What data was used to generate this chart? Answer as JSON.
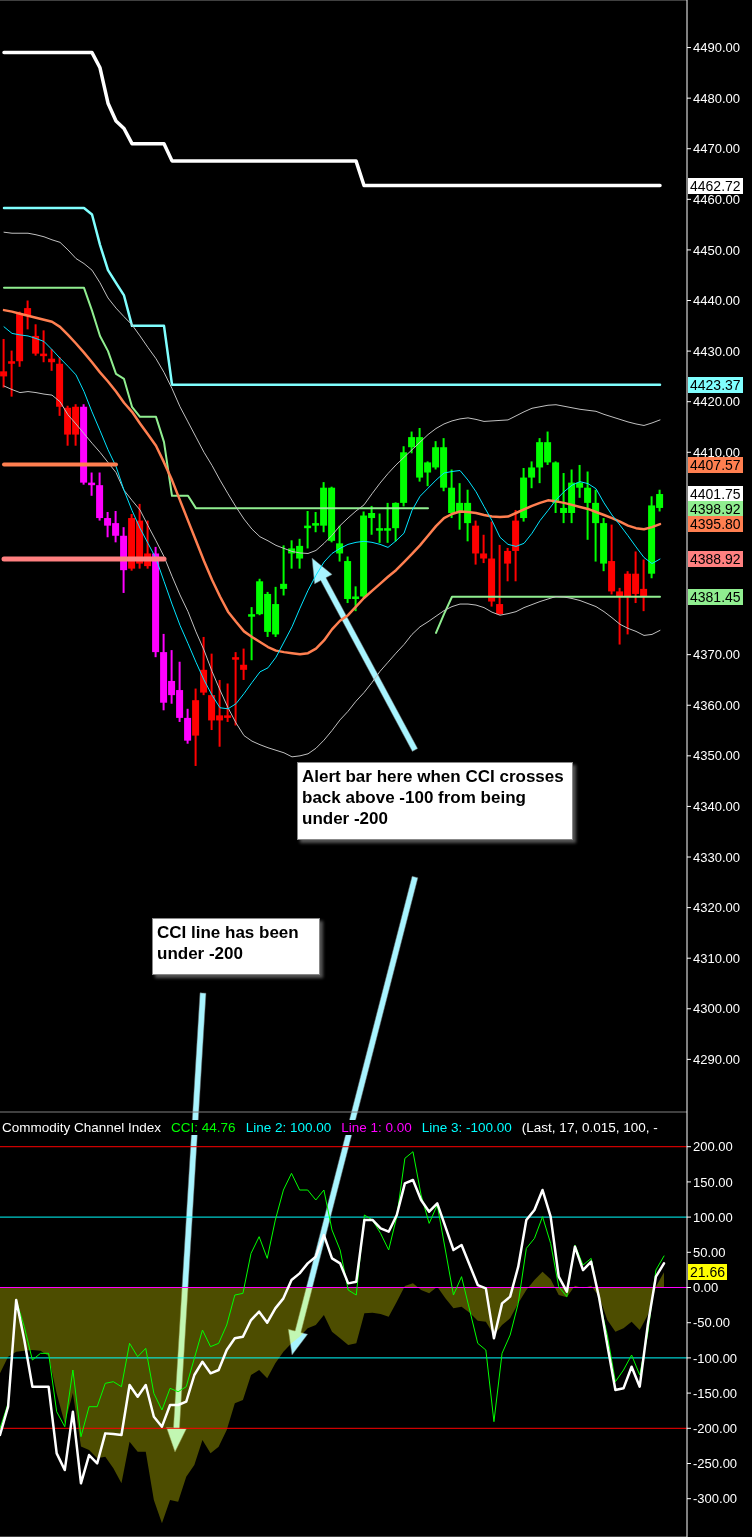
{
  "chart_data": [
    {
      "type": "candlestick",
      "tick_labels": "y",
      "categories": [
        null,
        null,
        null,
        null,
        null,
        null,
        null,
        null,
        null,
        null,
        null,
        null,
        null,
        null,
        null,
        null,
        null,
        null,
        null,
        null,
        null,
        null,
        null,
        null,
        null,
        null,
        null,
        null,
        null,
        null,
        null,
        null,
        null,
        null,
        null,
        null,
        null,
        null,
        null,
        null,
        null,
        null,
        null,
        null,
        null,
        null,
        null,
        null,
        null,
        null,
        null,
        null,
        null,
        null,
        null,
        null,
        null,
        null,
        null,
        null,
        null,
        null,
        null,
        null,
        null,
        null,
        null,
        null,
        null,
        null,
        null,
        null,
        null,
        null,
        null,
        null,
        null,
        null,
        null,
        null,
        null,
        null,
        null
      ],
      "ohlc": [
        [
          4426,
          4432.4,
          4422.8,
          4425
        ],
        [
          4428,
          4430.1,
          4421,
          4427.5
        ],
        [
          4437.5,
          4437.8,
          4426.9,
          4428
        ],
        [
          4438.5,
          4440,
          4434.3,
          4437
        ],
        [
          4433,
          4435.3,
          4429.1,
          4429.5
        ],
        [
          4429.5,
          4434.1,
          4427.8,
          4429
        ],
        [
          4428.5,
          4430.4,
          4426.1,
          4427.8
        ],
        [
          4427.5,
          4428.8,
          4417.2,
          4419
        ],
        [
          4418.8,
          4419.2,
          4411.3,
          4413.5
        ],
        [
          4419,
          4419.5,
          4411.3,
          4413.5
        ],
        [
          4419,
          4419.5,
          4403.6,
          4404
        ],
        [
          4404,
          4406,
          4401.4,
          4403.5
        ],
        [
          4403.5,
          4406,
          4396.5,
          4397
        ],
        [
          4397,
          4398.2,
          4393.2,
          4395.5
        ],
        [
          4396,
          4398.4,
          4392.2,
          4393.5
        ],
        [
          4393.5,
          4395.2,
          4382.2,
          4386.7
        ],
        [
          4397,
          4397.8,
          4386.6,
          4387
        ],
        [
          4396.5,
          4399.8,
          4387,
          4388
        ],
        [
          4390,
          4396.5,
          4387,
          4387.5
        ],
        [
          4390,
          4391.3,
          4369.5,
          4370.5
        ],
        [
          4370.5,
          4374.1,
          4359,
          4360.5
        ],
        [
          4364.8,
          4370.9,
          4360.3,
          4362
        ],
        [
          4363,
          4368.6,
          4356.7,
          4357.5
        ],
        [
          4357.5,
          4359.3,
          4352.4,
          4353
        ],
        [
          4361,
          4363.3,
          4348,
          4354
        ],
        [
          4367,
          4373.5,
          4362,
          4362.5
        ],
        [
          4362,
          4370.2,
          4355.1,
          4357
        ],
        [
          4358,
          4365,
          4351.8,
          4357
        ],
        [
          4358,
          4364.3,
          4356.7,
          4357.5
        ],
        [
          4369.5,
          4370.5,
          4356,
          4369
        ],
        [
          4368,
          4371.2,
          4365,
          4367
        ],
        [
          4377.5,
          4379.4,
          4368.9,
          4378
        ],
        [
          4378,
          4385,
          4377.8,
          4384.5
        ],
        [
          4374.5,
          4382.4,
          4373.5,
          4382
        ],
        [
          4374,
          4383.4,
          4373.5,
          4380
        ],
        [
          4383,
          4391.6,
          4381.7,
          4384
        ],
        [
          4390,
          4392.6,
          4387,
          4391
        ],
        [
          4389,
          4392.9,
          4387,
          4391.5
        ],
        [
          4395,
          4398.4,
          4391,
          4395.5
        ],
        [
          4395.5,
          4398.2,
          4394.2,
          4396
        ],
        [
          4395.5,
          4404.1,
          4394.2,
          4403
        ],
        [
          4392.5,
          4403.2,
          4392.2,
          4403
        ],
        [
          4390,
          4395.5,
          4388.4,
          4392
        ],
        [
          4381,
          4389.4,
          4380.2,
          4388.5
        ],
        [
          4381,
          4383.5,
          4378.6,
          4381.5
        ],
        [
          4381.5,
          4398.3,
          4381.2,
          4397.5
        ],
        [
          4397,
          4399.4,
          4393.7,
          4398
        ],
        [
          4394.5,
          4397.9,
          4392.1,
          4395
        ],
        [
          4394.5,
          4400,
          4392.1,
          4395
        ],
        [
          4395,
          4400.1,
          4392.4,
          4400
        ],
        [
          4400,
          4411.2,
          4399.3,
          4410
        ],
        [
          4411,
          4414.1,
          4409.8,
          4413
        ],
        [
          4405,
          4414.8,
          4404.2,
          4413
        ],
        [
          4406,
          4408.2,
          4403.3,
          4408
        ],
        [
          4407,
          4412.2,
          4406.6,
          4411
        ],
        [
          4403,
          4412.8,
          4402.3,
          4411
        ],
        [
          4398,
          4406.6,
          4397,
          4403
        ],
        [
          4398,
          4403.9,
          4394.7,
          4400
        ],
        [
          4396,
          4402.6,
          4392.4,
          4400
        ],
        [
          4395.5,
          4396.5,
          4387.8,
          4390
        ],
        [
          4390,
          4393.7,
          4388.1,
          4389
        ],
        [
          4389,
          4396.3,
          4379.5,
          4380.5
        ],
        [
          4380,
          4391.7,
          4377.9,
          4378
        ],
        [
          4390.5,
          4391.1,
          4384.5,
          4388
        ],
        [
          4396.5,
          4398.6,
          4384.5,
          4390.5
        ],
        [
          4397,
          4406.9,
          4396.3,
          4405
        ],
        [
          4405,
          4408.2,
          4402.9,
          4407
        ],
        [
          4407,
          4412.8,
          4403.9,
          4412
        ],
        [
          4408,
          4414.1,
          4407.5,
          4412
        ],
        [
          4400,
          4408.2,
          4398,
          4408
        ],
        [
          4398,
          4405.9,
          4396,
          4399
        ],
        [
          4398,
          4406.6,
          4396,
          4404
        ],
        [
          4403,
          4407.5,
          4401,
          4404
        ],
        [
          4400,
          4406.2,
          4392.7,
          4403
        ],
        [
          4396,
          4402.6,
          4388.4,
          4400
        ],
        [
          4388,
          4397,
          4386.5,
          4396
        ],
        [
          4388.5,
          4395.7,
          4381.9,
          4382.5
        ],
        [
          4382.5,
          4383.2,
          4372,
          4381.5
        ],
        [
          4386,
          4386.5,
          4374,
          4381.5
        ],
        [
          4386,
          4390.4,
          4380.2,
          4382
        ],
        [
          4383,
          4388.8,
          4378.6,
          4381.5
        ],
        [
          4386,
          4401.3,
          4385.1,
          4399.5
        ],
        [
          4399,
          4402.6,
          4398.3,
          4401.75
        ]
      ],
      "colors": [
        "#ff0000",
        "#ff0000",
        "#ff0000",
        "#ff0000",
        "#ff0000",
        "#ff0000",
        "#ff0000",
        "#ff0000",
        "#ff0000",
        "#ff0000",
        "#ff00ff",
        "#ff00ff",
        "#ff00ff",
        "#ff00ff",
        "#ff00ff",
        "#ff00ff",
        "#ff0000",
        "#ff0000",
        "#ff0000",
        "#ff00ff",
        "#ff00ff",
        "#ff00ff",
        "#ff00ff",
        "#ff00ff",
        "#ff0000",
        "#ff0000",
        "#ff0000",
        "#ff0000",
        "#ff0000",
        "#ff0000",
        "#ff0000",
        "#00ff00",
        "#00ff00",
        "#00ff00",
        "#00ff00",
        "#00ff00",
        "#00ff00",
        "#00ff00",
        "#00ff00",
        "#00ff00",
        "#00ff00",
        "#00ff00",
        "#00ff00",
        "#00ff00",
        "#00ff00",
        "#00ff00",
        "#00ff00",
        "#00ff00",
        "#00ff00",
        "#00ff00",
        "#00ff00",
        "#00ff00",
        "#00ff00",
        "#00ff00",
        "#00ff00",
        "#00ff00",
        "#00ff00",
        "#00ff00",
        "#00ff00",
        "#ff0000",
        "#ff0000",
        "#ff0000",
        "#ff0000",
        "#ff0000",
        "#ff0000",
        "#00ff00",
        "#00ff00",
        "#00ff00",
        "#00ff00",
        "#00ff00",
        "#00ff00",
        "#00ff00",
        "#00ff00",
        "#00ff00",
        "#00ff00",
        "#00ff00",
        "#ff0000",
        "#ff0000",
        "#ff0000",
        "#ff0000",
        "#ff0000",
        "#00ff00",
        "#00ff00"
      ],
      "series": [
        {
          "type": "line",
          "color": "#ffffff",
          "values": [
            4489,
            4489,
            4489,
            4489,
            4489,
            4489,
            4489,
            4489,
            4489,
            4489,
            4489,
            4489,
            4486,
            4479,
            4475.5,
            4474,
            4471,
            4471,
            4471,
            4471,
            4471,
            4467.6,
            4467.6,
            4467.6,
            4467.6,
            4467.6,
            4467.6,
            4467.6,
            4467.6,
            4467.6,
            4467.6,
            4467.6,
            4467.6,
            4467.6,
            4467.6,
            4467.6,
            4467.6,
            4467.6,
            4467.6,
            4467.6,
            4467.6,
            4467.6,
            4467.6,
            4467.6,
            4467.6,
            4462.72,
            4462.72,
            4462.72,
            4462.72,
            4462.72,
            4462.72,
            4462.72,
            4462.72,
            4462.72,
            4462.72,
            4462.72,
            4462.72,
            4462.72,
            4462.72,
            4462.72,
            4462.72,
            4462.72,
            4462.72,
            4462.72,
            4462.72,
            4462.72,
            4462.72,
            4462.72,
            4462.72,
            4462.72,
            4462.72,
            4462.72,
            4462.72,
            4462.72,
            4462.72,
            4462.72,
            4462.72,
            4462.72,
            4462.72,
            4462.72,
            4462.72,
            4462.72,
            4462.72
          ]
        },
        {
          "type": "line",
          "color": "#80ffff",
          "values": [
            4458.3,
            4458.3,
            4458.3,
            4458.3,
            4458.3,
            4458.3,
            4458.3,
            4458.3,
            4458.3,
            4458.3,
            4458.3,
            4457,
            4451,
            4446,
            4443.5,
            4441,
            4435,
            4435,
            4435,
            4435,
            4435,
            4423.37,
            4423.37,
            4423.37,
            4423.37,
            4423.37,
            4423.37,
            4423.37,
            4423.37,
            4423.37,
            4423.37,
            4423.37,
            4423.37,
            4423.37,
            4423.37,
            4423.37,
            4423.37,
            4423.37,
            4423.37,
            4423.37,
            4423.37,
            4423.37,
            4423.37,
            4423.37,
            4423.37,
            4423.37,
            4423.37,
            4423.37,
            4423.37,
            4423.37,
            4423.37,
            4423.37,
            4423.37,
            4423.37,
            4423.37,
            4423.37,
            4423.37,
            4423.37,
            4423.37,
            4423.37,
            4423.37,
            4423.37,
            4423.37,
            4423.37,
            4423.37,
            4423.37,
            4423.37,
            4423.37,
            4423.37,
            4423.37,
            4423.37,
            4423.37,
            4423.37,
            4423.37,
            4423.37,
            4423.37,
            4423.37,
            4423.37,
            4423.37,
            4423.37,
            4423.37,
            4423.37,
            4423.37
          ]
        },
        {
          "type": "line",
          "color": "#90ee90",
          "values": [
            4442.5,
            4442.5,
            4442.5,
            4442.5,
            4442.5,
            4442.5,
            4442.5,
            4442.5,
            4442.5,
            4442.5,
            4442.5,
            4438,
            4433,
            4430,
            4425.5,
            4424.5,
            4419,
            4417,
            4417,
            4417,
            4412,
            4401.4,
            4401.4,
            4401.4,
            4398.92,
            4398.92,
            4398.92,
            4398.92,
            4398.92,
            4398.92,
            4398.92,
            4398.92,
            4398.92,
            4398.92,
            4398.92,
            4398.92,
            4398.92,
            4398.92,
            4398.92,
            4398.92,
            4398.92,
            4398.92,
            4398.92,
            4398.92,
            4398.92,
            4398.92,
            4398.92,
            4398.92,
            4398.92,
            4398.92,
            4398.92,
            4398.92,
            4398.92,
            4398.92,
            null,
            null,
            null,
            null,
            null,
            null,
            null,
            null,
            null,
            null,
            null,
            null,
            null,
            null,
            null,
            null,
            null,
            null,
            null,
            null,
            null,
            null,
            null,
            null,
            null,
            null,
            null,
            null,
            null
          ]
        },
        {
          "type": "line",
          "color": "#90ee90",
          "values": [
            null,
            null,
            null,
            null,
            null,
            null,
            null,
            null,
            null,
            null,
            null,
            null,
            null,
            null,
            null,
            null,
            null,
            null,
            null,
            null,
            null,
            null,
            null,
            null,
            null,
            null,
            null,
            null,
            null,
            null,
            null,
            null,
            null,
            null,
            null,
            null,
            null,
            null,
            null,
            null,
            null,
            null,
            null,
            null,
            null,
            null,
            null,
            null,
            null,
            null,
            null,
            null,
            null,
            null,
            4374.3,
            4378,
            4381.45,
            4381.45,
            4381.45,
            4381.45,
            4381.45,
            4381.45,
            4381.45,
            4381.45,
            4381.45,
            4381.45,
            4381.45,
            4381.45,
            4381.45,
            4381.45,
            4381.45,
            4381.45,
            4381.45,
            4381.45,
            4381.45,
            4381.45,
            4381.45,
            4381.45,
            4381.45,
            4381.45,
            4381.45,
            4381.45,
            4381.45
          ]
        },
        {
          "type": "line",
          "color": "#c0c0c0",
          "values": [
            4453.5,
            4453.3,
            4453.3,
            4453.3,
            4453,
            4452.6,
            4452,
            4451.5,
            4450,
            4448.3,
            4447.3,
            4446,
            4443.5,
            4440.5,
            4438.5,
            4436.8,
            4435.2,
            4433,
            4430.7,
            4428.5,
            4425.8,
            4422.6,
            4419,
            4416,
            4413,
            4410,
            4407.4,
            4404.5,
            4401.8,
            4399.2,
            4396.8,
            4394.8,
            4393.3,
            4392.5,
            4391.6,
            4391,
            4390.4,
            4390.1,
            4390,
            4390.6,
            4392,
            4393.6,
            4395.5,
            4397,
            4398.4,
            4399.6,
            4401.8,
            4403.9,
            4405.8,
            4407.5,
            4409,
            4410.5,
            4412,
            4413.5,
            4414.7,
            4415.6,
            4416.2,
            4416.6,
            4416.8,
            4416.5,
            4416.1,
            4416.2,
            4416.3,
            4416.4,
            4417.2,
            4418,
            4418.7,
            4419,
            4419.3,
            4419.4,
            4419.1,
            4418.8,
            4418.5,
            4418.3,
            4418.1,
            4417.5,
            4417,
            4416.5,
            4416,
            4415.6,
            4415.3,
            4415.8,
            4416.4
          ]
        },
        {
          "type": "line",
          "color": "#c0c0c0",
          "values": [
            4423.1,
            4422.4,
            4421.8,
            4422,
            4421.8,
            4421.5,
            4421.3,
            4420,
            4417.4,
            4415.6,
            4413.7,
            4411.8,
            4410,
            4408,
            4406,
            4402.5,
            4400.5,
            4398.6,
            4395.5,
            4392.5,
            4389.4,
            4385.5,
            4381.8,
            4378.5,
            4374.5,
            4370.9,
            4366.7,
            4363,
            4359.5,
            4356.5,
            4354,
            4352.9,
            4352.2,
            4351.6,
            4351.1,
            4350.6,
            4349.8,
            4350,
            4350.4,
            4351.5,
            4353.1,
            4355,
            4357.1,
            4358.8,
            4360.8,
            4362.5,
            4364.5,
            4366.7,
            4368.5,
            4370.3,
            4372,
            4374,
            4375.5,
            4376.5,
            4377.6,
            4378.7,
            4379.5,
            4380,
            4380,
            4379.8,
            4379.3,
            4378.4,
            4377.8,
            4378.1,
            4378.5,
            4379.3,
            4379.9,
            4380.5,
            4381,
            4381.5,
            4381.4,
            4381.1,
            4380.7,
            4380.1,
            4379.5,
            4378.5,
            4377.3,
            4376,
            4375.2,
            4374.6,
            4373.8,
            4374,
            4374.8
          ]
        },
        {
          "type": "line",
          "color": "#ff7f50",
          "values": [
            4438.1,
            4437.8,
            4437.4,
            4437,
            4436.6,
            4436.2,
            4435.8,
            4434.8,
            4433.2,
            4431.5,
            4429.7,
            4427.8,
            4425.8,
            4424,
            4422,
            4419.8,
            4418,
            4415.7,
            4413.5,
            4411.3,
            4408,
            4404.5,
            4400.5,
            4396.5,
            4392.5,
            4388.5,
            4384.8,
            4381.5,
            4378.5,
            4376.5,
            4374.6,
            4373.5,
            4372.5,
            4371.5,
            4370.8,
            4370.5,
            4370.3,
            4370.1,
            4370.3,
            4371.2,
            4372.8,
            4375,
            4376.7,
            4377.8,
            4379.5,
            4381.2,
            4382.6,
            4384,
            4385.4,
            4386.7,
            4388.3,
            4389.9,
            4391.6,
            4393.5,
            4395.4,
            4397,
            4397.8,
            4398.3,
            4398.2,
            4398,
            4397.6,
            4397.3,
            4397.2,
            4397.3,
            4398,
            4398.7,
            4399.4,
            4400,
            4400.5,
            4400.3,
            4400,
            4399.6,
            4399.2,
            4398.8,
            4398.2,
            4397.6,
            4397,
            4396.3,
            4395.5,
            4395,
            4394.8,
            4395.2,
            4395.8
          ]
        },
        {
          "type": "line",
          "color": "#00e5ff",
          "values": [
            4434.8,
            4433.5,
            4433.2,
            4433,
            4432.5,
            4431.9,
            4430.3,
            4428.6,
            4427,
            4425.3,
            4422,
            4418,
            4414.3,
            4410.5,
            4407.2,
            4402.5,
            4398.5,
            4395,
            4392,
            4389,
            4384.5,
            4380,
            4375.8,
            4372.2,
            4368.5,
            4365,
            4362,
            4359.5,
            4359.3,
            4360.3,
            4362.3,
            4364.5,
            4366.6,
            4367.4,
            4369.5,
            4372.5,
            4375.5,
            4379.2,
            4382.7,
            4385.7,
            4388.3,
            4390,
            4391,
            4391.8,
            4392.2,
            4392.4,
            4392.2,
            4391.8,
            4391.2,
            4392.5,
            4394,
            4398.5,
            4401.3,
            4402.9,
            4404.5,
            4405.9,
            4406.2,
            4406.4,
            4404.5,
            4402.2,
            4399.3,
            4396.5,
            4393.2,
            4391.8,
            4391.4,
            4392,
            4394,
            4396.5,
            4398.5,
            4400.6,
            4402.2,
            4403.5,
            4404.2,
            4403.8,
            4402.8,
            4400,
            4397.6,
            4395.6,
            4393.5,
            4391.3,
            4389.2,
            4388,
            4388.9
          ]
        },
        {
          "type": "line",
          "color": "#ff7f50",
          "values": [
            4407.57,
            4407.57,
            4407.57,
            4407.57,
            4407.57,
            4407.57,
            4407.57,
            4407.57,
            4407.57,
            4407.57,
            4407.57,
            4407.57,
            4407.57,
            4407.57,
            4407.57,
            null,
            null,
            null,
            null,
            null,
            null,
            null,
            null,
            null,
            null,
            null,
            null,
            null,
            null,
            null,
            null,
            null,
            null,
            null,
            null,
            null,
            null,
            null,
            null,
            null,
            null,
            null,
            null,
            null,
            null,
            null,
            null,
            null,
            null,
            null,
            null,
            null,
            null,
            null,
            null,
            null,
            null,
            null,
            null,
            null,
            null,
            null,
            null,
            null,
            null,
            null,
            null,
            null,
            null,
            null,
            null,
            null,
            null,
            null,
            null,
            null,
            null,
            null,
            null,
            null,
            null,
            null,
            null
          ]
        },
        {
          "type": "line",
          "color": "#ff8080",
          "values": [
            4388.92,
            4388.92,
            4388.92,
            4388.92,
            4388.92,
            4388.92,
            4388.92,
            4388.92,
            4388.92,
            4388.92,
            4388.92,
            4388.92,
            4388.92,
            4388.92,
            4388.92,
            4388.92,
            4388.92,
            4388.92,
            4388.92,
            4388.92,
            4388.92,
            null,
            null,
            null,
            null,
            null,
            null,
            null,
            null,
            null,
            null,
            null,
            null,
            null,
            null,
            null,
            null,
            null,
            null,
            null,
            null,
            null,
            null,
            null,
            null,
            null,
            null,
            null,
            null,
            null,
            null,
            null,
            null,
            null,
            null,
            null,
            null,
            null,
            null,
            null,
            null,
            null,
            null,
            null,
            null,
            null,
            null,
            null,
            null,
            null,
            null,
            null,
            null,
            null,
            null,
            null,
            null,
            null,
            null,
            null,
            null,
            null,
            null
          ]
        }
      ],
      "ylim": [
        4279.6,
        4499.4
      ],
      "yticks": [
        {
          "value": 4490,
          "label": "4490.00"
        },
        {
          "value": 4480,
          "label": "4480.00"
        },
        {
          "value": 4470,
          "label": "4470.00"
        },
        {
          "value": 4460,
          "label": "4460.00"
        },
        {
          "value": 4450,
          "label": "4450.00"
        },
        {
          "value": 4440,
          "label": "4440.00"
        },
        {
          "value": 4430,
          "label": "4430.00"
        },
        {
          "value": 4420,
          "label": "4420.00"
        },
        {
          "value": 4410,
          "label": "4410.00"
        },
        {
          "value": 4370,
          "label": "4370.00"
        },
        {
          "value": 4360,
          "label": "4360.00"
        },
        {
          "value": 4350,
          "label": "4350.00"
        },
        {
          "value": 4340,
          "label": "4340.00"
        },
        {
          "value": 4330,
          "label": "4330.00"
        },
        {
          "value": 4320,
          "label": "4320.00"
        },
        {
          "value": 4310,
          "label": "4310.00"
        },
        {
          "value": 4300,
          "label": "4300.00"
        },
        {
          "value": 4290,
          "label": "4290.00"
        }
      ],
      "annotations": [
        "Alert bar here when CCI crosses back above -100 from being under -200",
        "CCI line has been under -200",
        "4462.72",
        "4423.37",
        "4407.57",
        "4401.75",
        "4398.92",
        "4395.80",
        "4388.92",
        "4381.45"
      ]
    },
    {
      "type": "line",
      "title": "Commodity Channel Index",
      "legend": "top left",
      "tick_labels": "y",
      "categories": [
        null,
        null,
        null,
        null,
        null,
        null,
        null,
        null,
        null,
        null,
        null,
        null,
        null,
        null,
        null,
        null,
        null,
        null,
        null,
        null,
        null,
        null,
        null,
        null,
        null,
        null,
        null,
        null,
        null,
        null,
        null,
        null,
        null,
        null,
        null,
        null,
        null,
        null,
        null,
        null,
        null,
        null,
        null,
        null,
        null,
        null,
        null,
        null,
        null,
        null,
        null,
        null,
        null,
        null,
        null,
        null,
        null,
        null,
        null,
        null,
        null,
        null,
        null,
        null,
        null,
        null,
        null,
        null,
        null,
        null,
        null,
        null,
        null,
        null,
        null,
        null,
        null,
        null,
        null,
        null,
        null,
        null,
        null
      ],
      "series": [
        {
          "type": "line",
          "name": "CCI: 44.76",
          "color": "#00ff00",
          "values": [
            -200,
            -164.5,
            -17.8,
            -55.7,
            -103,
            -93.5,
            -93.5,
            -176.4,
            -197.7,
            -117.2,
            -211.9,
            -169.3,
            -169.3,
            -136.1,
            -133.8,
            -140.9,
            -79.3,
            -98.3,
            -86.4,
            -150.4,
            -174,
            -143.2,
            -148,
            -140.9,
            -100.6,
            -60.4,
            -84,
            -79.3,
            -53.3,
            -10.7,
            -8.3,
            48.5,
            72.2,
            41.4,
            95.9,
            138.5,
            162.2,
            138.5,
            138.5,
            124.3,
            138.5,
            81.7,
            53.3,
            -3.6,
            -10.7,
            103,
            95.9,
            76.9,
            53.3,
            100.6,
            183.5,
            192.9,
            131.4,
            91.1,
            117.2,
            53.3,
            -10.7,
            15.4,
            -32,
            -79.3,
            -88.8,
            -190.6,
            -93.5,
            -67.5,
            -22.5,
            55.6,
            69.8,
            100.6,
            62.7,
            1.2,
            -13,
            60.4,
            31.9,
            41.4,
            -17.8,
            -67.5,
            -133.8,
            -117.2,
            -95.9,
            -124.3,
            -65.1,
            24.8,
            44.76
          ]
        },
        {
          "type": "line",
          "color": "#ffffff",
          "values": [
            -209.5,
            -169.3,
            -17.8,
            -74.6,
            -140.9,
            -140.9,
            -140.9,
            -235.6,
            -259.3,
            -176.4,
            -278.2,
            -238,
            -249.8,
            -207.2,
            -208,
            -209.5,
            -138.5,
            -155.1,
            -138.5,
            -183.5,
            -197.7,
            -166.9,
            -166.9,
            -162.2,
            -124.3,
            -105.4,
            -121.9,
            -117.2,
            -88.8,
            -72.2,
            -69.9,
            -46.2,
            -34.3,
            -50,
            -29.6,
            -15.4,
            10.6,
            20.1,
            34.3,
            43.8,
            74.5,
            41.4,
            34.3,
            5.9,
            8.3,
            95.9,
            95.9,
            84,
            79.3,
            103,
            147.9,
            152.7,
            124.3,
            107.7,
            119.5,
            86.4,
            53.3,
            60.4,
            31.9,
            3.5,
            -1.2,
            -72.2,
            -22.5,
            -13,
            29.6,
            95.9,
            110.1,
            138.5,
            100.6,
            15.4,
            -5.9,
            58,
            24.8,
            36.7,
            -15.4,
            -81.7,
            -145.6,
            -143.2,
            -112.5,
            -140.9,
            -53,
            15.4,
            34.3
          ]
        },
        {
          "type": "area",
          "color": "#ffff00",
          "values": [
            -121.9,
            -98.3,
            -91.2,
            -89.7,
            -88.8,
            -89.7,
            -97.3,
            -150.4,
            -193,
            -150,
            -226,
            -230.8,
            -242.7,
            -240.3,
            -256.9,
            -278.2,
            -219,
            -233.2,
            -233.2,
            -301.9,
            -335,
            -301.9,
            -304.2,
            -268.7,
            -252.1,
            -216.6,
            -235.6,
            -226.1,
            -202.4,
            -164.5,
            -159.8,
            -124.3,
            -117.2,
            -129,
            -107.7,
            -91.2,
            -79.3,
            -70,
            -58,
            -53.3,
            -39.1,
            -62.8,
            -72.2,
            -81.7,
            -79.3,
            -36.7,
            -35.8,
            -37.7,
            -41.4,
            -20.1,
            2.1,
            5.9,
            -3.6,
            -8.3,
            1.2,
            -15.4,
            -29.6,
            -27.2,
            -35.8,
            -47.1,
            -48.5,
            -67.5,
            -53.3,
            -43.8,
            -22.5,
            -3.6,
            10.6,
            22.5,
            11.6,
            -10.7,
            -14,
            2.6,
            -1.2,
            2.6,
            -13,
            -46.2,
            -62.8,
            -58,
            -48.5,
            -60.4,
            -39.1,
            1.2,
            21.66
          ]
        }
      ],
      "ref_lines": [
        {
          "axis": "y",
          "value": 200,
          "color": "#ff0000"
        },
        {
          "axis": "y",
          "value": 100,
          "label": "Line 2: 100.00",
          "color": "#00ffff"
        },
        {
          "axis": "y",
          "value": 0,
          "label": "Line 1: 0.00",
          "color": "#ff00ff"
        },
        {
          "axis": "y",
          "value": -100,
          "label": "Line 3: -100.00",
          "color": "#00ffff"
        },
        {
          "axis": "y",
          "value": -200,
          "color": "#ff0000"
        }
      ],
      "ylim": [
        -354.4,
        249.3
      ],
      "yticks": [
        {
          "value": 200,
          "label": "200.00"
        },
        {
          "value": 150,
          "label": "150.00"
        },
        {
          "value": 100,
          "label": "100.00"
        },
        {
          "value": 50,
          "label": "50.00"
        },
        {
          "value": 0,
          "label": "0.00"
        },
        {
          "value": -50,
          "label": "-50.00"
        },
        {
          "value": -100,
          "label": "-100.00"
        },
        {
          "value": -150,
          "label": "-150.00"
        },
        {
          "value": -200,
          "label": "-200.00"
        },
        {
          "value": -250,
          "label": "-250.00"
        },
        {
          "value": -300,
          "label": "-300.00"
        }
      ],
      "annotations": [
        "(Last, 17, 0.015, 100, -",
        "21.66"
      ]
    }
  ]
}
